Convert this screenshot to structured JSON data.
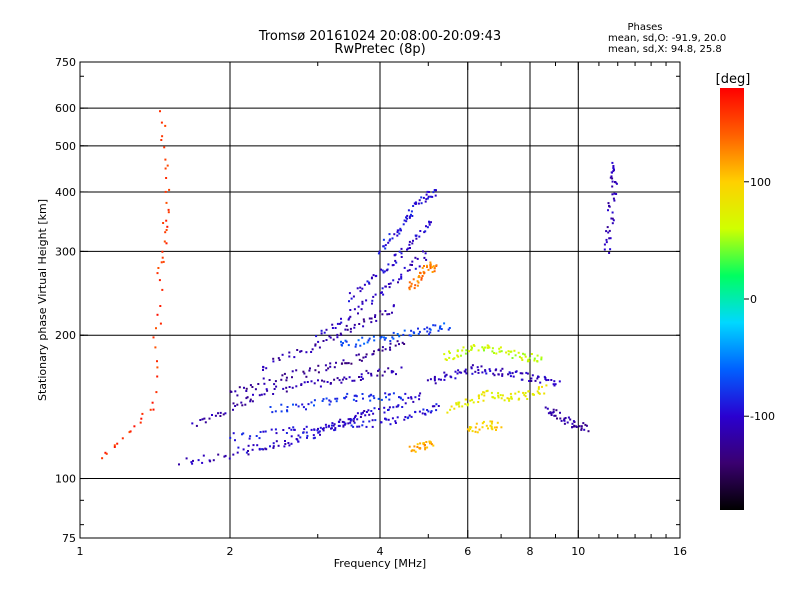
{
  "title_line1": "Tromsø 20161024 20:08:00-20:09:43",
  "title_line2": "RwPretec (8p)",
  "stats": {
    "heading": "Phases",
    "line1": "mean, sd,O: -91.9, 20.0",
    "line2": "mean, sd,X:  94.8, 25.8"
  },
  "colorbar": {
    "label": "[deg]",
    "ticks": [
      {
        "value": 100,
        "label": "100"
      },
      {
        "value": 0,
        "label": "0"
      },
      {
        "value": -100,
        "label": "-100"
      }
    ],
    "range": [
      -180,
      180
    ],
    "stops": [
      "#000000",
      "#3a0070",
      "#2a00d0",
      "#0060ff",
      "#00d8ff",
      "#00ff60",
      "#d0ff00",
      "#ffd000",
      "#ff6000",
      "#ff0000"
    ]
  },
  "chart_data": {
    "type": "scatter",
    "xlabel": "Frequency [MHz]",
    "ylabel": "Stationary phase Virtual Height [km]",
    "x_scale": "log",
    "y_scale": "log",
    "xlim": [
      1,
      16
    ],
    "ylim": [
      75,
      750
    ],
    "x_ticks": [
      {
        "v": 1,
        "label": "1"
      },
      {
        "v": 2,
        "label": "2"
      },
      {
        "v": 4,
        "label": "4"
      },
      {
        "v": 6,
        "label": "6"
      },
      {
        "v": 8,
        "label": "8"
      },
      {
        "v": 10,
        "label": "10"
      },
      {
        "v": 16,
        "label": "16"
      }
    ],
    "y_ticks": [
      {
        "v": 75,
        "label": "75"
      },
      {
        "v": 100,
        "label": "100"
      },
      {
        "v": 200,
        "label": "200"
      },
      {
        "v": 300,
        "label": "300"
      },
      {
        "v": 400,
        "label": "400"
      },
      {
        "v": 500,
        "label": "500"
      },
      {
        "v": 600,
        "label": "600"
      },
      {
        "v": 750,
        "label": "750"
      }
    ],
    "grid": true,
    "traces": [
      {
        "f": [
          1.6,
          2.0,
          2.6,
          3.3,
          3.8
        ],
        "h": [
          108,
          112,
          120,
          130,
          138
        ],
        "phase": -110
      },
      {
        "f": [
          2.0,
          2.5,
          3.0,
          3.6,
          4.2,
          4.8,
          5.3
        ],
        "h": [
          122,
          125,
          128,
          130,
          132,
          136,
          142
        ],
        "phase": -95
      },
      {
        "f": [
          2.1,
          2.7,
          3.2,
          3.7,
          4.3,
          4.9
        ],
        "h": [
          115,
          120,
          128,
          136,
          142,
          150
        ],
        "phase": -100
      },
      {
        "f": [
          1.7,
          2.0,
          2.3,
          2.8,
          3.3,
          3.8,
          4.4
        ],
        "h": [
          130,
          140,
          150,
          158,
          160,
          165,
          170
        ],
        "phase": -115
      },
      {
        "f": [
          2.0,
          2.4,
          2.9,
          3.4,
          3.9,
          4.5
        ],
        "h": [
          150,
          160,
          168,
          175,
          185,
          195
        ],
        "phase": -125
      },
      {
        "f": [
          2.3,
          2.8,
          3.3,
          3.8,
          4.3
        ],
        "h": [
          170,
          185,
          200,
          215,
          230
        ],
        "phase": -118
      },
      {
        "f": [
          3.0,
          3.5,
          4.0,
          4.5,
          5.0
        ],
        "h": [
          200,
          220,
          245,
          270,
          300
        ],
        "phase": -105
      },
      {
        "f": [
          3.5,
          3.9,
          4.3,
          4.7,
          5.1
        ],
        "h": [
          240,
          265,
          290,
          320,
          350
        ],
        "phase": -100
      },
      {
        "f": [
          4.0,
          4.3,
          4.6,
          4.9,
          5.2
        ],
        "h": [
          300,
          330,
          360,
          390,
          400
        ],
        "phase": -92
      },
      {
        "f": [
          2.4,
          2.9,
          3.4,
          3.9,
          4.5
        ],
        "h": [
          140,
          142,
          148,
          148,
          150
        ],
        "phase": -80
      },
      {
        "f": [
          3.3,
          3.8,
          4.4,
          5.0,
          5.5
        ],
        "h": [
          190,
          195,
          200,
          205,
          210
        ],
        "phase": -70
      },
      {
        "f": [
          5.0,
          5.6,
          6.2,
          6.8,
          7.5,
          8.3,
          9.2
        ],
        "h": [
          160,
          165,
          170,
          168,
          165,
          162,
          158
        ],
        "phase": -105
      },
      {
        "f": [
          5.5,
          6.0,
          6.6,
          7.2,
          7.9,
          8.6
        ],
        "h": [
          140,
          145,
          150,
          148,
          150,
          155
        ],
        "phase": 80
      },
      {
        "f": [
          5.4,
          5.9,
          6.5,
          7.1,
          7.8,
          8.5
        ],
        "h": [
          180,
          185,
          190,
          185,
          180,
          178
        ],
        "phase": 60
      },
      {
        "f": [
          4.6,
          4.8,
          5.0,
          5.2
        ],
        "h": [
          250,
          265,
          280,
          275
        ],
        "phase": 130
      },
      {
        "f": [
          4.6,
          4.9,
          5.1
        ],
        "h": [
          115,
          117,
          118
        ],
        "phase": 115
      },
      {
        "f": [
          6.0,
          6.5,
          7.0
        ],
        "h": [
          125,
          130,
          128
        ],
        "phase": 100
      },
      {
        "f": [
          8.6,
          9.2,
          9.8,
          10.5
        ],
        "h": [
          140,
          135,
          130,
          128
        ],
        "phase": -120
      },
      {
        "f": [
          1.1,
          1.4,
          1.45,
          1.5,
          1.45
        ],
        "h": [
          110,
          140,
          270,
          370,
          610
        ],
        "phase": 160
      },
      {
        "f": [
          11.4,
          11.6,
          11.8,
          11.7
        ],
        "h": [
          300,
          350,
          420,
          460
        ],
        "phase": -110
      }
    ]
  }
}
